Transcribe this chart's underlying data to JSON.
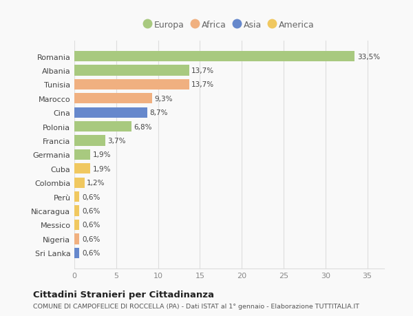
{
  "categories": [
    "Romania",
    "Albania",
    "Tunisia",
    "Marocco",
    "Cina",
    "Polonia",
    "Francia",
    "Germania",
    "Cuba",
    "Colombia",
    "Perù",
    "Nicaragua",
    "Messico",
    "Nigeria",
    "Sri Lanka"
  ],
  "values": [
    33.5,
    13.7,
    13.7,
    9.3,
    8.7,
    6.8,
    3.7,
    1.9,
    1.9,
    1.2,
    0.6,
    0.6,
    0.6,
    0.6,
    0.6
  ],
  "labels": [
    "33,5%",
    "13,7%",
    "13,7%",
    "9,3%",
    "8,7%",
    "6,8%",
    "3,7%",
    "1,9%",
    "1,9%",
    "1,2%",
    "0,6%",
    "0,6%",
    "0,6%",
    "0,6%",
    "0,6%"
  ],
  "continents": [
    "Europa",
    "Europa",
    "Africa",
    "Africa",
    "Asia",
    "Europa",
    "Europa",
    "Europa",
    "America",
    "America",
    "America",
    "America",
    "America",
    "Africa",
    "Asia"
  ],
  "colors": {
    "Europa": "#a8c97f",
    "Africa": "#f0b080",
    "Asia": "#6688cc",
    "America": "#f0c860"
  },
  "legend_entries": [
    "Europa",
    "Africa",
    "Asia",
    "America"
  ],
  "xlim": [
    0,
    37
  ],
  "xticks": [
    0,
    5,
    10,
    15,
    20,
    25,
    30,
    35
  ],
  "title": "Cittadini Stranieri per Cittadinanza",
  "subtitle": "COMUNE DI CAMPOFELICE DI ROCCELLA (PA) - Dati ISTAT al 1° gennaio - Elaborazione TUTTITALIA.IT",
  "bg_color": "#f9f9f9",
  "grid_color": "#dddddd",
  "bar_height": 0.75
}
